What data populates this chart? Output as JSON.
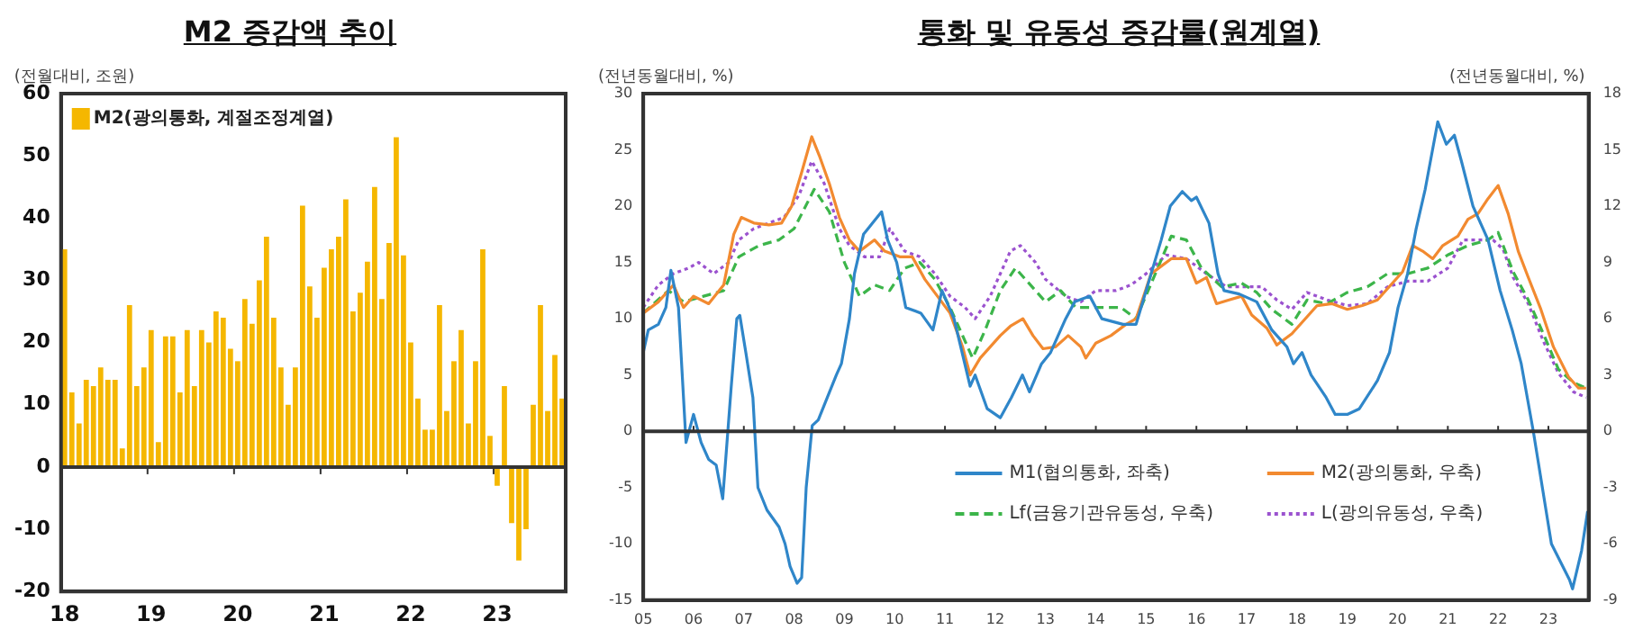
{
  "chart_data": [
    {
      "type": "bar",
      "title": "M2 증감액 추이",
      "ylabel": "(전월대비, 조원)",
      "categories": [
        "18",
        null,
        null,
        null,
        null,
        null,
        null,
        null,
        null,
        null,
        null,
        null,
        "19",
        null,
        null,
        null,
        null,
        null,
        null,
        null,
        null,
        null,
        null,
        null,
        "20",
        null,
        null,
        null,
        null,
        null,
        null,
        null,
        null,
        null,
        null,
        null,
        "21",
        null,
        null,
        null,
        null,
        null,
        null,
        null,
        null,
        null,
        null,
        null,
        "22",
        null,
        null,
        null,
        null,
        null,
        null,
        null,
        null,
        null,
        null,
        null,
        "23",
        null,
        null,
        null,
        null,
        null,
        null,
        null,
        null,
        null
      ],
      "series": [
        {
          "name": "M2(광의통화, 계절조정계열)",
          "color": "#f5b700",
          "values": [
            35,
            12,
            7,
            14,
            13,
            16,
            14,
            14,
            3,
            26,
            13,
            16,
            22,
            4,
            21,
            21,
            12,
            22,
            13,
            22,
            20,
            25,
            24,
            19,
            17,
            27,
            23,
            30,
            37,
            24,
            16,
            10,
            16,
            42,
            29,
            24,
            32,
            35,
            37,
            43,
            25,
            28,
            33,
            45,
            27,
            36,
            53,
            34,
            20,
            11,
            6,
            6,
            26,
            9,
            17,
            22,
            7,
            17,
            35,
            5,
            -3,
            13,
            -9,
            -15,
            -10,
            10,
            26,
            9,
            18,
            11
          ]
        }
      ],
      "ylim": [
        -20,
        60
      ],
      "yticks": [
        -20,
        -10,
        0,
        10,
        20,
        30,
        40,
        50,
        60
      ],
      "grid": false,
      "legend": "top left",
      "ref_lines": [
        {
          "axis": "y",
          "value": 0,
          "color": "#333333"
        }
      ]
    },
    {
      "type": "line",
      "title": "통화 및 유동성 증감률(원계열)",
      "ylabel": "(전년동월대비, %)",
      "y2label": "(전년동월대비, %)",
      "xlim": [
        2005,
        2023.8
      ],
      "xticks": [
        {
          "value": 2005,
          "label": "05"
        },
        {
          "value": 2006,
          "label": "06"
        },
        {
          "value": 2007,
          "label": "07"
        },
        {
          "value": 2008,
          "label": "08"
        },
        {
          "value": 2009,
          "label": "09"
        },
        {
          "value": 2010,
          "label": "10"
        },
        {
          "value": 2011,
          "label": "11"
        },
        {
          "value": 2012,
          "label": "12"
        },
        {
          "value": 2013,
          "label": "13"
        },
        {
          "value": 2014,
          "label": "14"
        },
        {
          "value": 2015,
          "label": "15"
        },
        {
          "value": 2016,
          "label": "16"
        },
        {
          "value": 2017,
          "label": "17"
        },
        {
          "value": 2018,
          "label": "18"
        },
        {
          "value": 2019,
          "label": "19"
        },
        {
          "value": 2020,
          "label": "20"
        },
        {
          "value": 2021,
          "label": "21"
        },
        {
          "value": 2022,
          "label": "22"
        },
        {
          "value": 2023,
          "label": "23"
        }
      ],
      "ylim": [
        -15,
        30
      ],
      "yticks": [
        -15,
        -10,
        -5,
        0,
        5,
        10,
        15,
        20,
        25,
        30
      ],
      "y2lim": [
        -9,
        18
      ],
      "y2ticks": [
        -9,
        -6,
        -3,
        0,
        3,
        6,
        9,
        12,
        15,
        18
      ],
      "grid": false,
      "legend": "bottom",
      "marker": "none",
      "ref_lines": [
        {
          "axis": "y",
          "value": 0,
          "color": "#333333"
        }
      ],
      "series": [
        {
          "name": "M1(협의통화, 좌축)",
          "color": "#2f86c9",
          "line_style": "solid",
          "x": [
            2005.0,
            2005.1,
            2005.3,
            2005.45,
            2005.55,
            2005.7,
            2005.85,
            2006.0,
            2006.15,
            2006.3,
            2006.45,
            2006.58,
            2006.75,
            2006.86,
            2006.92,
            2007.04,
            2007.18,
            2007.28,
            2007.46,
            2007.7,
            2007.82,
            2007.92,
            2008.06,
            2008.15,
            2008.24,
            2008.36,
            2008.48,
            2008.66,
            2008.84,
            2008.94,
            2009.1,
            2009.2,
            2009.38,
            2009.56,
            2009.74,
            2009.86,
            2010.04,
            2010.22,
            2010.52,
            2010.76,
            2010.94,
            2011.18,
            2011.5,
            2011.6,
            2011.84,
            2012.1,
            2012.32,
            2012.54,
            2012.68,
            2012.92,
            2013.1,
            2013.4,
            2013.58,
            2013.88,
            2014.12,
            2014.54,
            2014.8,
            2015.0,
            2015.3,
            2015.48,
            2015.72,
            2015.9,
            2016.0,
            2016.25,
            2016.43,
            2016.55,
            2016.85,
            2017.2,
            2017.5,
            2017.8,
            2017.93,
            2018.1,
            2018.28,
            2018.58,
            2018.76,
            2019.0,
            2019.24,
            2019.6,
            2019.84,
            2020.01,
            2020.2,
            2020.37,
            2020.55,
            2020.8,
            2020.97,
            2021.13,
            2021.27,
            2021.5,
            2021.8,
            2022.04,
            2022.28,
            2022.46,
            2022.7,
            2022.88,
            2023.06,
            2023.42,
            2023.48,
            2023.66,
            2023.78
          ],
          "values": [
            7,
            9,
            9.5,
            11,
            14.3,
            11,
            -1,
            1.5,
            -1,
            -2.5,
            -3,
            -6,
            4,
            10,
            10.3,
            7,
            3,
            -5,
            -7,
            -8.5,
            -10,
            -12,
            -13.5,
            -13,
            -5,
            0.5,
            1,
            3,
            5,
            6,
            10,
            14,
            17.5,
            18.5,
            19.5,
            17,
            15,
            11,
            10.5,
            9,
            12.5,
            10,
            4,
            5,
            2,
            1.2,
            3,
            5,
            3.5,
            6,
            7,
            10,
            11.5,
            12,
            10,
            9.5,
            9.5,
            12.5,
            17,
            20,
            21.3,
            20.5,
            20.8,
            18.5,
            14,
            12.5,
            12.2,
            11.5,
            9,
            7.5,
            6,
            7,
            5,
            3,
            1.5,
            1.5,
            2,
            4.5,
            7,
            11,
            14,
            18,
            21.5,
            27.5,
            25.5,
            26.3,
            24,
            20,
            17,
            12.5,
            9,
            6,
            0,
            -5,
            -10,
            -13.2,
            -14,
            -10.6,
            -7.1
          ]
        },
        {
          "name": "M2(광의통화, 우축)",
          "color": "#f28a30",
          "axis": "y2",
          "line_style": "solid",
          "x": [
            2005.0,
            2005.3,
            2005.6,
            2005.8,
            2006.0,
            2006.3,
            2006.6,
            2006.8,
            2006.95,
            2007.2,
            2007.5,
            2007.75,
            2007.95,
            2008.15,
            2008.35,
            2008.5,
            2008.7,
            2008.9,
            2009.1,
            2009.3,
            2009.6,
            2009.8,
            2010.1,
            2010.35,
            2010.6,
            2010.85,
            2011.1,
            2011.35,
            2011.5,
            2011.7,
            2011.9,
            2012.1,
            2012.3,
            2012.55,
            2012.75,
            2012.95,
            2013.2,
            2013.45,
            2013.7,
            2013.8,
            2014.0,
            2014.3,
            2014.6,
            2014.8,
            2015.1,
            2015.5,
            2015.8,
            2016.0,
            2016.2,
            2016.4,
            2016.65,
            2016.9,
            2017.1,
            2017.4,
            2017.6,
            2017.9,
            2018.1,
            2018.4,
            2018.7,
            2019.0,
            2019.3,
            2019.6,
            2019.9,
            2020.1,
            2020.3,
            2020.5,
            2020.7,
            2020.9,
            2021.2,
            2021.4,
            2021.6,
            2021.8,
            2022.0,
            2022.2,
            2022.4,
            2022.6,
            2022.85,
            2023.1,
            2023.4,
            2023.6,
            2023.75
          ],
          "values": [
            6.3,
            6.9,
            7.8,
            6.6,
            7.2,
            6.8,
            7.8,
            10.5,
            11.4,
            11.1,
            11.0,
            11.1,
            12.0,
            13.8,
            15.7,
            14.7,
            13.2,
            11.4,
            10.2,
            9.6,
            10.2,
            9.6,
            9.3,
            9.3,
            8.1,
            7.2,
            6.3,
            4.5,
            3.0,
            3.9,
            4.5,
            5.1,
            5.6,
            6.0,
            5.1,
            4.4,
            4.5,
            5.1,
            4.5,
            3.9,
            4.7,
            5.1,
            5.7,
            6.0,
            8.4,
            9.2,
            9.2,
            7.9,
            8.2,
            6.8,
            7.0,
            7.2,
            6.2,
            5.5,
            4.6,
            5.2,
            5.8,
            6.7,
            6.8,
            6.5,
            6.7,
            7.0,
            7.9,
            8.5,
            9.9,
            9.6,
            9.2,
            9.9,
            10.4,
            11.3,
            11.6,
            12.4,
            13.1,
            11.6,
            9.6,
            8.2,
            6.5,
            4.5,
            2.9,
            2.3,
            2.3
          ]
        },
        {
          "name": "Lf(금융기관유동성, 우축)",
          "color": "#3cb54a",
          "axis": "y2",
          "line_style": "dashed",
          "x": [
            2005.0,
            2005.5,
            2005.8,
            2006.2,
            2006.6,
            2006.9,
            2007.3,
            2007.7,
            2008.0,
            2008.4,
            2008.7,
            2009.0,
            2009.3,
            2009.6,
            2009.9,
            2010.2,
            2010.5,
            2010.8,
            2011.1,
            2011.4,
            2011.55,
            2011.8,
            2012.1,
            2012.4,
            2012.7,
            2013.0,
            2013.3,
            2013.6,
            2014.0,
            2014.5,
            2014.8,
            2015.2,
            2015.5,
            2015.8,
            2016.1,
            2016.5,
            2016.9,
            2017.2,
            2017.5,
            2017.9,
            2018.2,
            2018.6,
            2019.0,
            2019.4,
            2019.8,
            2020.2,
            2020.6,
            2021.0,
            2021.4,
            2021.8,
            2022.0,
            2022.3,
            2022.6,
            2022.9,
            2023.2,
            2023.5,
            2023.75
          ],
          "values": [
            6.3,
            7.5,
            6.9,
            7.2,
            7.5,
            9.3,
            9.9,
            10.2,
            10.8,
            12.9,
            11.7,
            9.0,
            7.2,
            7.8,
            7.5,
            8.7,
            9.0,
            8.1,
            6.6,
            4.8,
            3.9,
            5.4,
            7.5,
            8.7,
            7.8,
            6.9,
            7.5,
            6.6,
            6.6,
            6.6,
            6.0,
            8.5,
            10.4,
            10.2,
            8.7,
            7.7,
            7.9,
            7.4,
            6.5,
            5.7,
            7.0,
            6.8,
            7.4,
            7.7,
            8.4,
            8.4,
            8.7,
            9.4,
            9.9,
            10.2,
            10.6,
            8.5,
            7.0,
            5.2,
            3.3,
            2.6,
            2.3
          ]
        },
        {
          "name": "L(광의유동성, 우축)",
          "color": "#9b52cf",
          "axis": "y2",
          "line_style": "dotted",
          "x": [
            2005.0,
            2005.3,
            2005.6,
            2005.9,
            2006.1,
            2006.4,
            2006.7,
            2006.9,
            2007.2,
            2007.5,
            2007.8,
            2008.1,
            2008.35,
            2008.6,
            2008.9,
            2009.1,
            2009.4,
            2009.7,
            2009.9,
            2010.2,
            2010.5,
            2010.8,
            2011.1,
            2011.4,
            2011.6,
            2011.9,
            2012.1,
            2012.3,
            2012.5,
            2012.8,
            2013.0,
            2013.4,
            2013.7,
            2014.0,
            2014.4,
            2014.7,
            2015.0,
            2015.4,
            2015.8,
            2016.2,
            2016.6,
            2016.9,
            2017.3,
            2017.6,
            2017.9,
            2018.2,
            2018.6,
            2019.0,
            2019.4,
            2019.8,
            2020.2,
            2020.6,
            2021.0,
            2021.3,
            2021.6,
            2021.9,
            2022.1,
            2022.3,
            2022.6,
            2022.9,
            2023.2,
            2023.5,
            2023.75
          ],
          "values": [
            6.6,
            7.8,
            8.4,
            8.7,
            9.0,
            8.4,
            9.0,
            10.2,
            10.8,
            11.1,
            11.4,
            12.6,
            14.4,
            13.2,
            10.8,
            9.9,
            9.3,
            9.3,
            10.8,
            9.6,
            9.3,
            8.4,
            7.2,
            6.6,
            6.0,
            7.2,
            8.4,
            9.6,
            9.9,
            9.0,
            8.1,
            7.2,
            6.9,
            7.5,
            7.5,
            7.8,
            8.4,
            9.4,
            9.2,
            8.4,
            7.7,
            7.7,
            7.7,
            7.0,
            6.5,
            7.4,
            7.0,
            6.7,
            6.8,
            7.7,
            8.0,
            8.0,
            8.7,
            10.2,
            10.2,
            10.2,
            9.7,
            8.2,
            6.8,
            4.8,
            3.1,
            2.1,
            1.8
          ]
        }
      ]
    }
  ]
}
